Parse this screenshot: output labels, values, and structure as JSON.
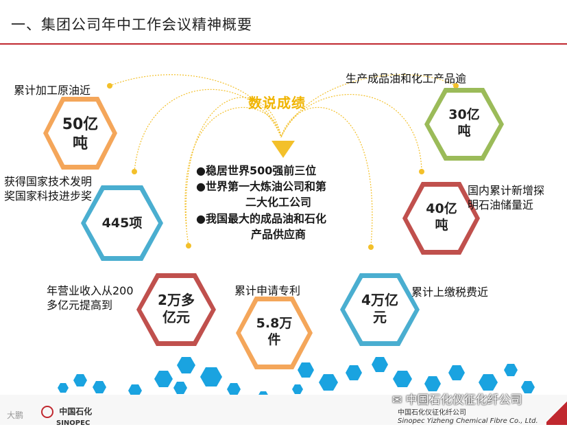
{
  "header": {
    "title": "一、集团公司年中工作会议精神概要"
  },
  "center": {
    "heading": "数说成绩",
    "bullets": [
      "●稳居世界500强前三位",
      "●世界第一大炼油公司和第",
      "二大化工公司",
      "●我国最大的成品油和石化",
      "产品供应商"
    ]
  },
  "cards": [
    {
      "value": "50亿\n吨",
      "label": "累计加工原油近",
      "color": "#f4a65a"
    },
    {
      "value": "445项",
      "label": "获得国家技术发明\n奖国家科技进步奖",
      "color": "#4aaed0"
    },
    {
      "value": "2万多\n亿元",
      "label": "年营业收入从200\n多亿元提高到",
      "color": "#c0504d"
    },
    {
      "value": "5.8万\n件",
      "label": "累计申请专利",
      "color": "#f4a65a"
    },
    {
      "value": "4万亿\n元",
      "label": "累计上缴税费近",
      "color": "#4aaed0"
    },
    {
      "value": "40亿\n吨",
      "label": "国内累计新增探\n明石油储量近",
      "color": "#c0504d"
    },
    {
      "value": "30亿\n吨",
      "label": "生产成品油和化工产品逾",
      "color": "#9bbb59"
    }
  ],
  "footer": {
    "logo_left_cn": "中国石化",
    "logo_left_en": "SINOPEC",
    "logo_right_cn": "中国石化仪征化纤公司",
    "logo_right_en": "Sinopec Yizheng Chemical Fibre Co., Ltd.",
    "wechat_mark": "中国石化仪征化纤公司",
    "watermark": "大鹏"
  }
}
